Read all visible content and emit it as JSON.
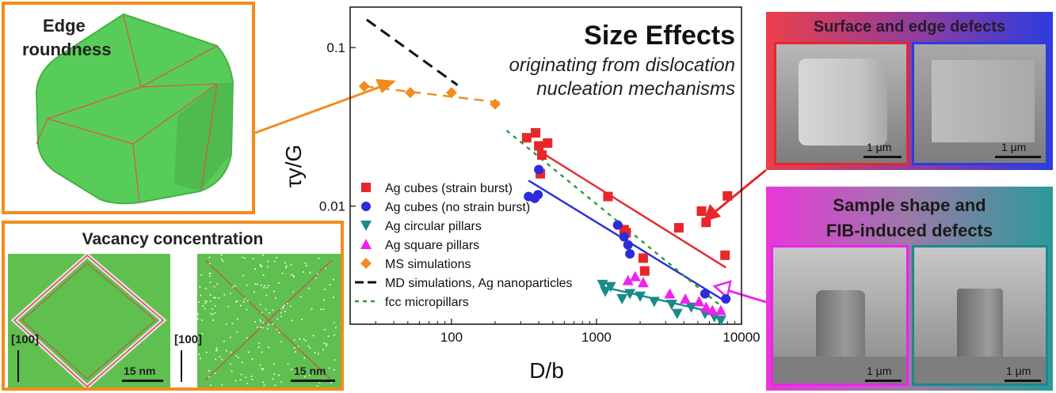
{
  "panels": {
    "edge_roundness": {
      "title": "Edge\nroundness",
      "title_line1": "Edge",
      "title_line2": "roundness"
    },
    "vacancy": {
      "title": "Vacancy concentration",
      "axis_label": "[100]",
      "scale_label": "15 nm"
    },
    "surface": {
      "title": "Surface and edge defects",
      "scale_label": "1 μm"
    },
    "sample_shape": {
      "title_line1": "Sample shape and",
      "title_line2": "FIB-induced defects",
      "scale_label": "1 μm"
    }
  },
  "colors": {
    "orange": "#f28c1e",
    "red": "#e8262b",
    "blue": "#2c2cdc",
    "teal": "#1a8a8a",
    "magenta": "#ee22ee",
    "green_particle": "#58cc58",
    "dashed_green": "#2e9a2e"
  },
  "chart_data": {
    "type": "scatter",
    "title": "Size Effects",
    "subtitle_line1": "originating from dislocation",
    "subtitle_line2": "nucleation mechanisms",
    "xlabel": "D/b",
    "ylabel": "τy/G",
    "xscale": "log",
    "yscale": "log",
    "xlim": [
      20,
      10000
    ],
    "ylim": [
      0.0018,
      0.18
    ],
    "xticks": [
      {
        "v": 100,
        "label": "100"
      },
      {
        "v": 1000,
        "label": "1000"
      },
      {
        "v": 10000,
        "label": "10000"
      }
    ],
    "yticks": [
      {
        "v": 0.01,
        "label": "0.01"
      },
      {
        "v": 0.1,
        "label": "0.1"
      }
    ],
    "legend_position": "left",
    "series": [
      {
        "name": "Ag cubes (strain burst)",
        "marker": "square",
        "color": "#e8262b",
        "x": [
          330,
          380,
          400,
          410,
          420,
          460,
          1200,
          1550,
          1600,
          2100,
          2150,
          3700,
          5300,
          5700,
          7700,
          8000
        ],
        "y": [
          0.027,
          0.029,
          0.024,
          0.016,
          0.021,
          0.025,
          0.0115,
          0.0071,
          0.0068,
          0.0047,
          0.0039,
          0.0073,
          0.0093,
          0.0079,
          0.0049,
          0.0116
        ],
        "fit": {
          "x": [
            380,
            7800
          ],
          "y": [
            0.023,
            0.0041
          ]
        }
      },
      {
        "name": "Ag cubes (no strain burst)",
        "marker": "circle",
        "color": "#2c2cdc",
        "x": [
          340,
          375,
          395,
          400,
          1400,
          1550,
          1650,
          1700,
          5600,
          7800
        ],
        "y": [
          0.0115,
          0.0112,
          0.0118,
          0.017,
          0.0076,
          0.0064,
          0.0057,
          0.005,
          0.0028,
          0.0026
        ],
        "fit": {
          "x": [
            340,
            7800
          ],
          "y": [
            0.0145,
            0.0025
          ]
        }
      },
      {
        "name": "Ag circular pillars",
        "marker": "triangle-down",
        "color": "#1a8a8a",
        "x": [
          1100,
          1150,
          1250,
          1500,
          1700,
          2000,
          2500,
          3300,
          3600,
          4500,
          5600,
          6500,
          7200
        ],
        "y": [
          0.0032,
          0.0029,
          0.0031,
          0.0026,
          0.0028,
          0.0027,
          0.0025,
          0.0024,
          0.0021,
          0.0023,
          0.0021,
          0.002,
          0.0019
        ],
        "fit": {
          "x": [
            1100,
            7000
          ],
          "y": [
            0.0031,
            0.0021
          ]
        }
      },
      {
        "name": "Ag square pillars",
        "marker": "triangle-up",
        "color": "#ee22ee",
        "x": [
          1650,
          1850,
          2100,
          3200,
          4100,
          5100,
          5700,
          6300,
          7200
        ],
        "y": [
          0.0034,
          0.0036,
          0.0033,
          0.0028,
          0.0026,
          0.0025,
          0.0023,
          0.0022,
          0.0022
        ]
      },
      {
        "name": "MS simulations",
        "marker": "diamond",
        "color": "#f28c1e",
        "x": [
          25,
          52,
          100,
          200
        ],
        "y": [
          0.057,
          0.052,
          0.052,
          0.044
        ],
        "fit": {
          "x": [
            25,
            220
          ],
          "y": [
            0.057,
            0.045
          ],
          "dashed": true
        }
      },
      {
        "name": "MD simulations, Ag nanoparticles",
        "marker": "line-dash",
        "color": "#111111",
        "fit": {
          "x": [
            26,
            110
          ],
          "y": [
            0.15,
            0.058
          ],
          "dashed": true
        }
      },
      {
        "name": "fcc micropillars",
        "marker": "line-dot",
        "color": "#2e9a2e",
        "fit": {
          "x": [
            240,
            7000
          ],
          "y": [
            0.03,
            0.0024
          ],
          "dashed": true
        }
      }
    ]
  }
}
